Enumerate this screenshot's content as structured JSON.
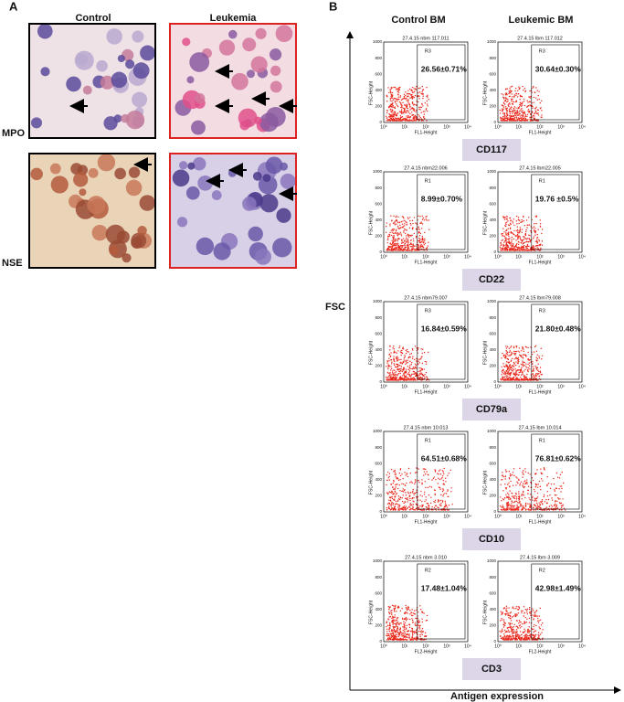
{
  "panel_a": {
    "label": "A",
    "columns": [
      "Control",
      "Leukemia"
    ],
    "rows": [
      "MPO",
      "NSE"
    ]
  },
  "panel_b": {
    "label": "B",
    "columns": [
      "Control BM",
      "Leukemic BM"
    ],
    "y_axis_label": "FSC",
    "x_axis_label": "Antigen expression",
    "plot_axes": {
      "y_title": "FSC-Height",
      "yticks": [
        "0",
        "200",
        "400",
        "600",
        "800",
        "1000"
      ],
      "xticks": [
        "10⁰",
        "10¹",
        "10²",
        "10³",
        "10⁴"
      ]
    },
    "markers": [
      {
        "name": "CD117",
        "x_title": "FL1-Height",
        "plots": [
          {
            "header": "27.4.15 nbm 117.011",
            "gate": "R3",
            "value": "26.56±0.71%"
          },
          {
            "header": "27.4.15 lbm 117.012",
            "gate": "R3",
            "value": "30.64±0.30%"
          }
        ]
      },
      {
        "name": "CD22",
        "x_title": "FL1-Height",
        "plots": [
          {
            "header": "27.4.15 nbm22.006",
            "gate": "R1",
            "value": "8.99±0.70%"
          },
          {
            "header": "27.4.15 lbm22.005",
            "gate": "R1",
            "value": "19.76 ±0.5%"
          }
        ]
      },
      {
        "name": "CD79a",
        "x_title": "FL1-Height",
        "plots": [
          {
            "header": "27.4.15 nbm79.007",
            "gate": "R3",
            "value": "16.84±0.59%"
          },
          {
            "header": "27.4.15 lbm79.008",
            "gate": "R3",
            "value": "21.80±0.48%"
          }
        ]
      },
      {
        "name": "CD10",
        "x_title": "FL1-Height",
        "plots": [
          {
            "header": "27.4.15 nbm 10.013",
            "gate": "R1",
            "value": "64.51±0.68%"
          },
          {
            "header": "27.4.15 lbm 10.014",
            "gate": "R1",
            "value": "76.81±0.62%"
          }
        ]
      },
      {
        "name": "CD3",
        "x_title": "FL2-Height",
        "plots": [
          {
            "header": "27.4.15 nbm 3.010",
            "gate": "R2",
            "value": "17.48±1.04%"
          },
          {
            "header": "27.4.15 lbm 3.009",
            "gate": "R2",
            "value": "42.98±1.49%"
          }
        ]
      }
    ]
  }
}
